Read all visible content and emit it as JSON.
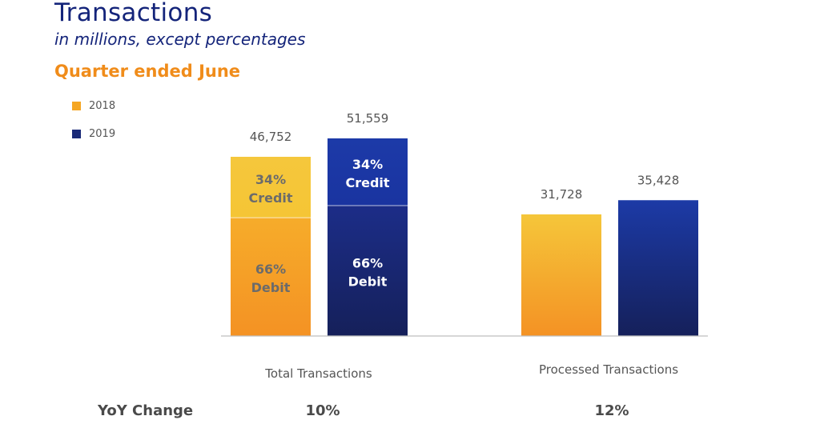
{
  "title": "Transactions",
  "subtitle": "in millions, except percentages",
  "period": "Quarter ended June",
  "colors": {
    "title": "#14247a",
    "accent": "#f08c1a",
    "s2018_top": "#f5c63a",
    "s2018_bottom": "#f49224",
    "s2019_top": "#1c3aa6",
    "s2019_bottom": "#15205a"
  },
  "legend": [
    {
      "label": "2018",
      "color": "#f5a623"
    },
    {
      "label": "2019",
      "color": "#1a2a78"
    }
  ],
  "chart_data": {
    "type": "bar",
    "categories": [
      "Total Transactions",
      "Processed Transactions"
    ],
    "series": [
      {
        "name": "2018",
        "values": [
          46752,
          31728
        ],
        "value_labels": [
          "46,752",
          "31,728"
        ]
      },
      {
        "name": "2019",
        "values": [
          51559,
          35428
        ],
        "value_labels": [
          "51,559",
          "35,428"
        ]
      }
    ],
    "segments": {
      "category": "Total Transactions",
      "items": [
        {
          "name": "Credit",
          "share": 0.34,
          "label_pct": "34%",
          "label_name": "Credit"
        },
        {
          "name": "Debit",
          "share": 0.66,
          "label_pct": "66%",
          "label_name": "Debit"
        }
      ]
    },
    "ylim": [
      0,
      52000
    ],
    "legend_position": "top-left",
    "grid": false
  },
  "yoy": {
    "label": "YoY Change",
    "values": [
      "10%",
      "12%"
    ]
  }
}
